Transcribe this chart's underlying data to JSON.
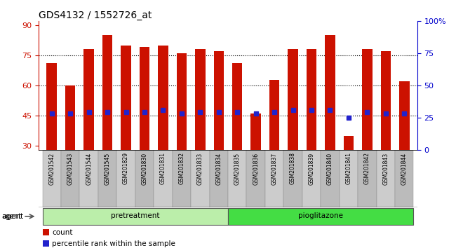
{
  "title": "GDS4132 / 1552726_at",
  "samples": [
    "GSM201542",
    "GSM201543",
    "GSM201544",
    "GSM201545",
    "GSM201829",
    "GSM201830",
    "GSM201831",
    "GSM201832",
    "GSM201833",
    "GSM201834",
    "GSM201835",
    "GSM201836",
    "GSM201837",
    "GSM201838",
    "GSM201839",
    "GSM201840",
    "GSM201841",
    "GSM201842",
    "GSM201843",
    "GSM201844"
  ],
  "bar_heights": [
    71,
    60,
    78,
    85,
    80,
    79,
    80,
    76,
    78,
    77,
    71,
    46,
    63,
    78,
    78,
    85,
    35,
    78,
    77,
    62
  ],
  "blue_dot_y": [
    46,
    46,
    47,
    47,
    47,
    47,
    48,
    46,
    47,
    47,
    47,
    46,
    47,
    48,
    48,
    48,
    44,
    47,
    46,
    46
  ],
  "pretreatment_count": 10,
  "ylim_left": [
    28,
    92
  ],
  "yticks_left": [
    30,
    45,
    60,
    75,
    90
  ],
  "yticks_right": [
    0,
    25,
    50,
    75,
    100
  ],
  "bar_color": "#cc1100",
  "dot_color": "#2222cc",
  "pretreatment_color": "#bbeeaa",
  "pioglitazone_color": "#44dd44",
  "xtick_bg_color": "#cccccc",
  "title_fontsize": 10,
  "bar_width": 0.55
}
